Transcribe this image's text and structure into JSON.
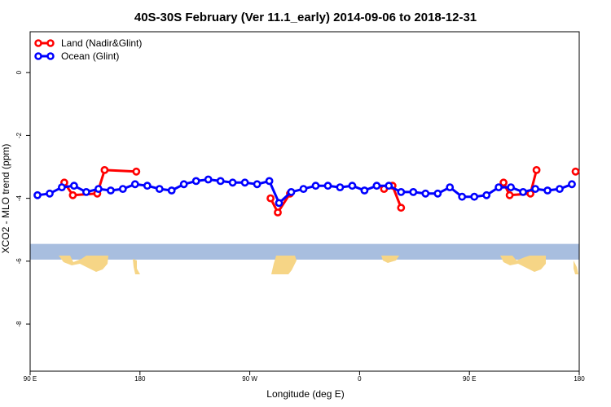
{
  "chart_data": {
    "type": "line",
    "title": "40S-30S February (Ver 11.1_early)   2014-09-06 to 2018-12-31",
    "xlabel": "Longitude (deg E)",
    "ylabel": "XCO2 - MLO trend (ppm)",
    "xlim": [
      90,
      540
    ],
    "ylim": [
      -9.5,
      1.3
    ],
    "x_ticks": [
      {
        "value": 90,
        "label": "90 E"
      },
      {
        "value": 180,
        "label": "180"
      },
      {
        "value": 270,
        "label": "90 W"
      },
      {
        "value": 360,
        "label": "0"
      },
      {
        "value": 450,
        "label": "90 E"
      },
      {
        "value": 540,
        "label": "180"
      }
    ],
    "y_ticks": [
      {
        "value": 0,
        "label": "0"
      },
      {
        "value": -2,
        "label": "-2"
      },
      {
        "value": -4,
        "label": "-4"
      },
      {
        "value": -6,
        "label": "-6"
      },
      {
        "value": -8,
        "label": "-8"
      }
    ],
    "legend_position": "top-left",
    "series": [
      {
        "name": "Land (Nadir&Glint)",
        "color": "#ff0000",
        "segments": [
          [
            [
              118,
              -3.5
            ],
            [
              125,
              -3.9
            ],
            [
              145,
              -3.85
            ],
            [
              151,
              -3.1
            ],
            [
              177,
              -3.15
            ]
          ],
          [
            [
              287,
              -4.0
            ],
            [
              293,
              -4.45
            ],
            [
              303,
              -3.85
            ]
          ],
          [
            [
              380,
              -3.7
            ],
            [
              387,
              -3.6
            ],
            [
              394,
              -4.3
            ]
          ],
          [
            [
              478,
              -3.5
            ],
            [
              483,
              -3.9
            ],
            [
              500,
              -3.85
            ],
            [
              505,
              -3.1
            ]
          ],
          [
            [
              537,
              -3.15
            ]
          ]
        ]
      },
      {
        "name": "Ocean (Glint)",
        "color": "#0000ff",
        "segments": [
          [
            [
              96,
              -3.9
            ],
            [
              106,
              -3.85
            ],
            [
              116,
              -3.65
            ],
            [
              126,
              -3.6
            ],
            [
              136,
              -3.8
            ],
            [
              146,
              -3.7
            ],
            [
              156,
              -3.75
            ],
            [
              166,
              -3.7
            ],
            [
              176,
              -3.55
            ],
            [
              186,
              -3.6
            ],
            [
              196,
              -3.7
            ],
            [
              206,
              -3.75
            ],
            [
              216,
              -3.55
            ],
            [
              226,
              -3.45
            ],
            [
              236,
              -3.4
            ],
            [
              246,
              -3.45
            ],
            [
              256,
              -3.5
            ],
            [
              266,
              -3.5
            ],
            [
              276,
              -3.55
            ],
            [
              286,
              -3.45
            ],
            [
              294,
              -4.15
            ],
            [
              304,
              -3.8
            ],
            [
              314,
              -3.7
            ],
            [
              324,
              -3.6
            ],
            [
              334,
              -3.6
            ],
            [
              344,
              -3.65
            ],
            [
              354,
              -3.6
            ],
            [
              364,
              -3.75
            ],
            [
              374,
              -3.6
            ],
            [
              384,
              -3.6
            ],
            [
              394,
              -3.8
            ],
            [
              404,
              -3.8
            ],
            [
              414,
              -3.85
            ],
            [
              424,
              -3.85
            ],
            [
              434,
              -3.65
            ],
            [
              444,
              -3.95
            ],
            [
              454,
              -3.95
            ],
            [
              464,
              -3.9
            ],
            [
              474,
              -3.65
            ],
            [
              484,
              -3.65
            ],
            [
              494,
              -3.8
            ],
            [
              504,
              -3.7
            ],
            [
              514,
              -3.75
            ],
            [
              524,
              -3.7
            ],
            [
              534,
              -3.55
            ]
          ]
        ]
      }
    ],
    "map_strip": {
      "y_range": [
        -5.45,
        -5.95
      ],
      "ocean_color": "#a8bedf",
      "land_color": "#f6d586"
    }
  }
}
